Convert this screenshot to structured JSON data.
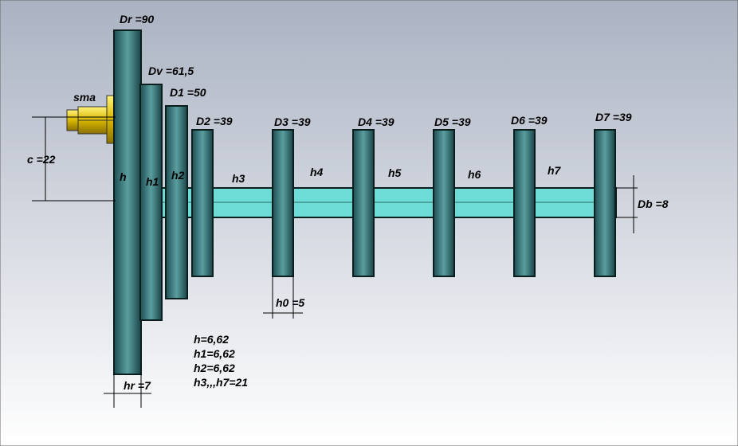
{
  "connector": "sma",
  "dimensions": [
    "Dr =90",
    "Dv =61,5",
    "D1 =50",
    "D2 =39",
    "D3 =39",
    "D4 =39",
    "D5 =39",
    "D6 =39",
    "D7 =39",
    "c =22",
    "Db =8",
    "h0 =5",
    "hr =7"
  ],
  "segments": [
    "h",
    "h1",
    "h2",
    "h3",
    "h4",
    "h5",
    "h6",
    "h7"
  ],
  "notes": [
    "h=6,62",
    "h1=6,62",
    "h2=6,62",
    "h3,,,h7=21"
  ]
}
